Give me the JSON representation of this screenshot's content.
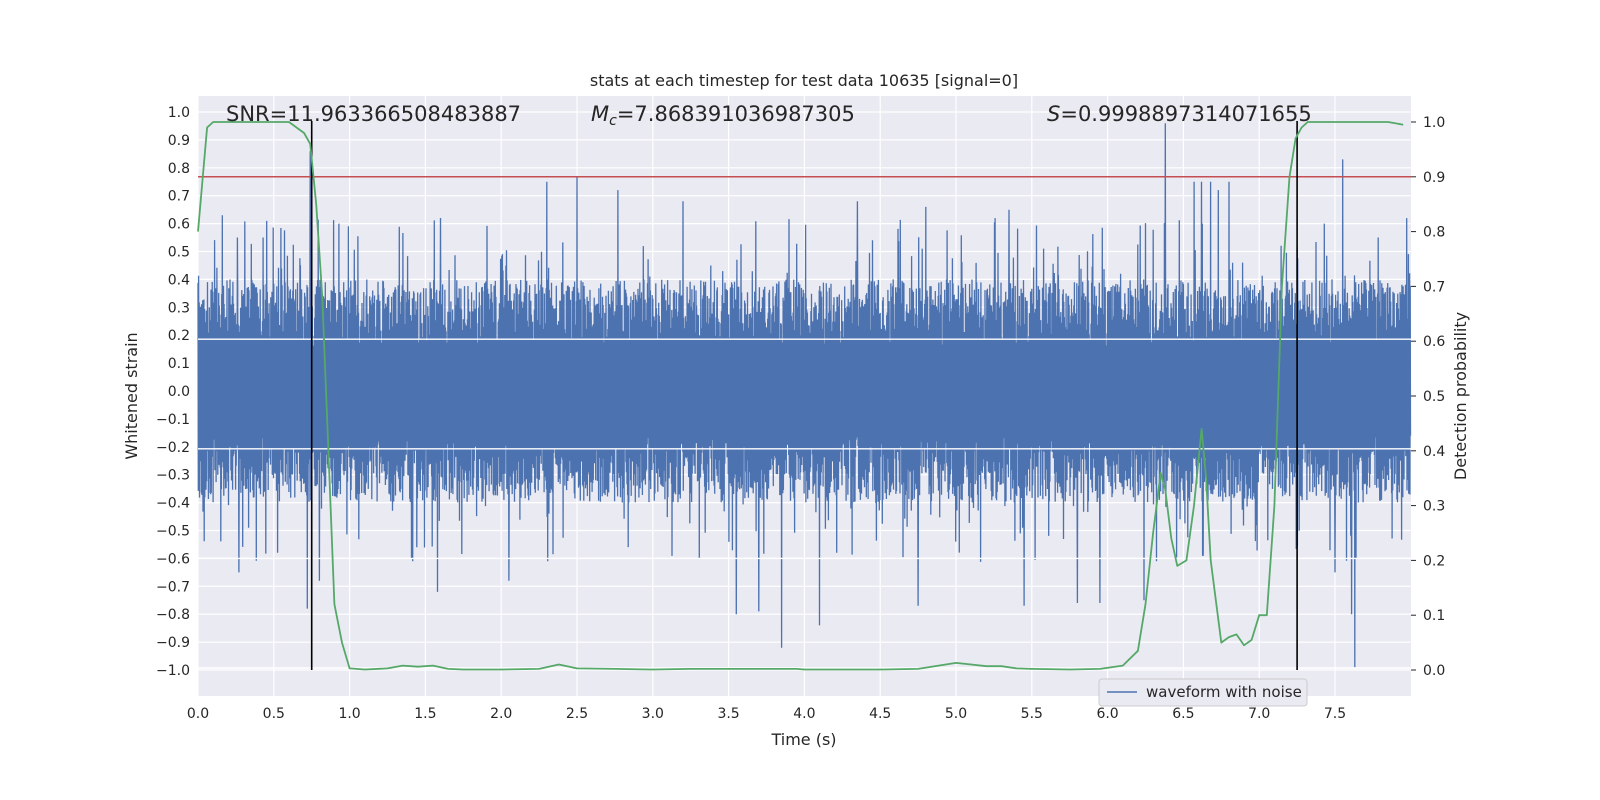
{
  "chart_data": {
    "type": "line",
    "title": "stats at each timestep for test data 10635 [signal=0]",
    "xlabel": "Time (s)",
    "ylabel": "Whitened strain",
    "y2label": "Detection probability",
    "xlim": [
      0.0,
      8.0
    ],
    "ylim": [
      -1.05,
      1.05
    ],
    "y2lim": [
      -0.05,
      1.05
    ],
    "grid": true,
    "x_ticks": [
      "0.0",
      "0.5",
      "1.0",
      "1.5",
      "2.0",
      "2.5",
      "3.0",
      "3.5",
      "4.0",
      "4.5",
      "5.0",
      "5.5",
      "6.0",
      "6.5",
      "7.0",
      "7.5"
    ],
    "y_ticks": [
      "1.0",
      "0.9",
      "0.8",
      "0.7",
      "0.6",
      "0.5",
      "0.4",
      "0.3",
      "0.2",
      "0.1",
      "0.0",
      "−0.1",
      "−0.2",
      "−0.3",
      "−0.4",
      "−0.5",
      "−0.6",
      "−0.7",
      "−0.8",
      "−0.9",
      "−1.0"
    ],
    "y2_ticks": [
      "1.0",
      "0.9",
      "0.8",
      "0.7",
      "0.6",
      "0.5",
      "0.4",
      "0.3",
      "0.2",
      "0.1",
      "0.0"
    ],
    "annotations": {
      "snr": "SNR=11.963366508483887",
      "mc_symbol": "M",
      "mc_sub": "c",
      "mc_value": "=7.868391036987305",
      "s_symbol": "S",
      "s_value": "=0.9998897314071655"
    },
    "threshold": {
      "y2": 0.9,
      "color": "#c44e52"
    },
    "vlines": [
      0.75,
      7.25
    ],
    "legend": {
      "label": "waveform with noise",
      "location": "lower-right"
    },
    "series": [
      {
        "name": "waveform with noise",
        "axis": "left",
        "color": "#4c72b0",
        "typical_envelope": 0.4,
        "peaks": [
          [
            0.74,
            0.86
          ],
          [
            0.72,
            -0.78
          ],
          [
            0.8,
            -0.68
          ],
          [
            0.16,
            0.63
          ],
          [
            0.26,
            0.55
          ],
          [
            0.43,
            0.55
          ],
          [
            0.93,
            0.6
          ],
          [
            1.6,
            0.62
          ],
          [
            2.3,
            0.75
          ],
          [
            2.5,
            0.77
          ],
          [
            2.77,
            0.72
          ],
          [
            3.2,
            0.68
          ],
          [
            3.7,
            0.62
          ],
          [
            4.35,
            0.68
          ],
          [
            4.8,
            0.66
          ],
          [
            5.35,
            0.65
          ],
          [
            5.8,
            0.6
          ],
          [
            6.38,
            0.96
          ],
          [
            6.57,
            0.75
          ],
          [
            6.62,
            0.75
          ],
          [
            6.68,
            0.75
          ],
          [
            6.73,
            0.72
          ],
          [
            6.8,
            0.75
          ],
          [
            7.55,
            0.83
          ],
          [
            7.43,
            0.6
          ],
          [
            3.85,
            -0.92
          ],
          [
            4.1,
            -0.84
          ],
          [
            3.55,
            -0.8
          ],
          [
            3.7,
            -0.79
          ],
          [
            4.75,
            -0.77
          ],
          [
            5.45,
            -0.77
          ],
          [
            6.24,
            -0.75
          ],
          [
            5.8,
            -0.76
          ],
          [
            5.95,
            -0.76
          ],
          [
            7.63,
            -0.99
          ],
          [
            7.61,
            -0.8
          ],
          [
            7.5,
            -0.65
          ],
          [
            0.27,
            -0.65
          ],
          [
            1.58,
            -0.72
          ],
          [
            2.05,
            -0.68
          ]
        ]
      },
      {
        "name": "",
        "axis": "right",
        "color": "#55a868",
        "x": [
          0.0,
          0.06,
          0.1,
          0.2,
          0.4,
          0.6,
          0.65,
          0.7,
          0.74,
          0.78,
          0.82,
          0.86,
          0.9,
          0.95,
          1.0,
          1.1,
          1.25,
          1.35,
          1.45,
          1.55,
          1.65,
          1.75,
          2.0,
          2.25,
          2.38,
          2.5,
          2.75,
          3.0,
          3.25,
          3.5,
          3.75,
          3.95,
          4.0,
          4.25,
          4.5,
          4.75,
          5.0,
          5.1,
          5.2,
          5.3,
          5.4,
          5.5,
          5.75,
          5.95,
          6.1,
          6.2,
          6.25,
          6.3,
          6.35,
          6.38,
          6.42,
          6.46,
          6.52,
          6.57,
          6.62,
          6.65,
          6.68,
          6.75,
          6.8,
          6.85,
          6.9,
          6.95,
          7.0,
          7.05,
          7.1,
          7.15,
          7.2,
          7.24,
          7.28,
          7.32,
          7.37,
          7.42,
          7.5,
          7.7,
          7.85,
          7.95
        ],
        "values": [
          0.8,
          0.99,
          1.0,
          1.0,
          1.0,
          1.0,
          0.99,
          0.98,
          0.96,
          0.85,
          0.68,
          0.4,
          0.12,
          0.05,
          0.003,
          0.001,
          0.003,
          0.008,
          0.006,
          0.008,
          0.002,
          0.001,
          0.001,
          0.002,
          0.01,
          0.003,
          0.002,
          0.001,
          0.002,
          0.002,
          0.002,
          0.002,
          0.001,
          0.001,
          0.001,
          0.002,
          0.013,
          0.01,
          0.007,
          0.007,
          0.003,
          0.002,
          0.001,
          0.002,
          0.008,
          0.035,
          0.12,
          0.25,
          0.36,
          0.33,
          0.24,
          0.19,
          0.2,
          0.3,
          0.44,
          0.35,
          0.2,
          0.05,
          0.06,
          0.065,
          0.045,
          0.055,
          0.1,
          0.1,
          0.3,
          0.7,
          0.9,
          0.97,
          0.99,
          1.0,
          1.0,
          1.0,
          1.0,
          1.0,
          1.0,
          0.995
        ]
      }
    ]
  }
}
